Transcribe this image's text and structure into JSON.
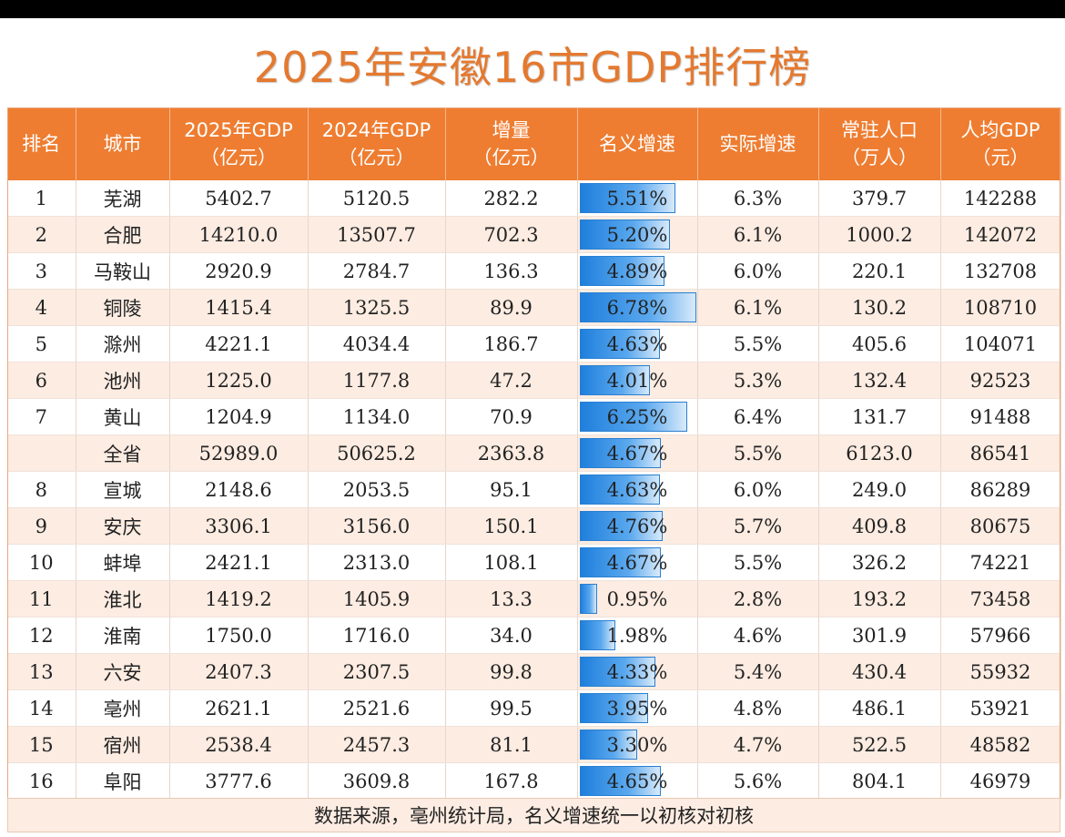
{
  "title": "2025年安徽16市GDP排行榜",
  "footer": "数据来源，亳州统计局，名义增速统一以初核对初核",
  "colors": {
    "header_bg": "#ee7d31",
    "title": "#e4792f",
    "bar": "#1f7fdc",
    "alt_row": "#fcece2"
  },
  "chart_data": {
    "type": "table",
    "title": "2025年安徽16市GDP排行榜",
    "columns": [
      [
        "排名"
      ],
      [
        "城市"
      ],
      [
        "2025年GDP",
        "（亿元）"
      ],
      [
        "2024年GDP",
        "（亿元）"
      ],
      [
        "增量",
        "（亿元）"
      ],
      [
        "名义增速"
      ],
      [
        "实际增速"
      ],
      [
        "常驻人口",
        "（万人）"
      ],
      [
        "人均GDP",
        "（元）"
      ]
    ],
    "data_bar_column": "名义增速",
    "rows": [
      [
        "1",
        "芜湖",
        "5402.7",
        "5120.5",
        "282.2",
        "5.51%",
        "6.3%",
        "379.7",
        "142288"
      ],
      [
        "2",
        "合肥",
        "14210.0",
        "13507.7",
        "702.3",
        "5.20%",
        "6.1%",
        "1000.2",
        "142072"
      ],
      [
        "3",
        "马鞍山",
        "2920.9",
        "2784.7",
        "136.3",
        "4.89%",
        "6.0%",
        "220.1",
        "132708"
      ],
      [
        "4",
        "铜陵",
        "1415.4",
        "1325.5",
        "89.9",
        "6.78%",
        "6.1%",
        "130.2",
        "108710"
      ],
      [
        "5",
        "滁州",
        "4221.1",
        "4034.4",
        "186.7",
        "4.63%",
        "5.5%",
        "405.6",
        "104071"
      ],
      [
        "6",
        "池州",
        "1225.0",
        "1177.8",
        "47.2",
        "4.01%",
        "5.3%",
        "132.4",
        "92523"
      ],
      [
        "7",
        "黄山",
        "1204.9",
        "1134.0",
        "70.9",
        "6.25%",
        "6.4%",
        "131.7",
        "91488"
      ],
      [
        "",
        "全省",
        "52989.0",
        "50625.2",
        "2363.8",
        "4.67%",
        "5.5%",
        "6123.0",
        "86541"
      ],
      [
        "8",
        "宣城",
        "2148.6",
        "2053.5",
        "95.1",
        "4.63%",
        "6.0%",
        "249.0",
        "86289"
      ],
      [
        "9",
        "安庆",
        "3306.1",
        "3156.0",
        "150.1",
        "4.76%",
        "5.7%",
        "409.8",
        "80675"
      ],
      [
        "10",
        "蚌埠",
        "2421.1",
        "2313.0",
        "108.1",
        "4.67%",
        "5.5%",
        "326.2",
        "74221"
      ],
      [
        "11",
        "淮北",
        "1419.2",
        "1405.9",
        "13.3",
        "0.95%",
        "2.8%",
        "193.2",
        "73458"
      ],
      [
        "12",
        "淮南",
        "1750.0",
        "1716.0",
        "34.0",
        "1.98%",
        "4.6%",
        "301.9",
        "57966"
      ],
      [
        "13",
        "六安",
        "2407.3",
        "2307.5",
        "99.8",
        "4.33%",
        "5.4%",
        "430.4",
        "55932"
      ],
      [
        "14",
        "亳州",
        "2621.1",
        "2521.6",
        "99.5",
        "3.95%",
        "4.8%",
        "486.1",
        "53921"
      ],
      [
        "15",
        "宿州",
        "2538.4",
        "2457.3",
        "81.1",
        "3.30%",
        "4.7%",
        "522.5",
        "48582"
      ],
      [
        "16",
        "阜阳",
        "3777.6",
        "3609.8",
        "167.8",
        "4.65%",
        "5.6%",
        "804.1",
        "46979"
      ]
    ]
  }
}
